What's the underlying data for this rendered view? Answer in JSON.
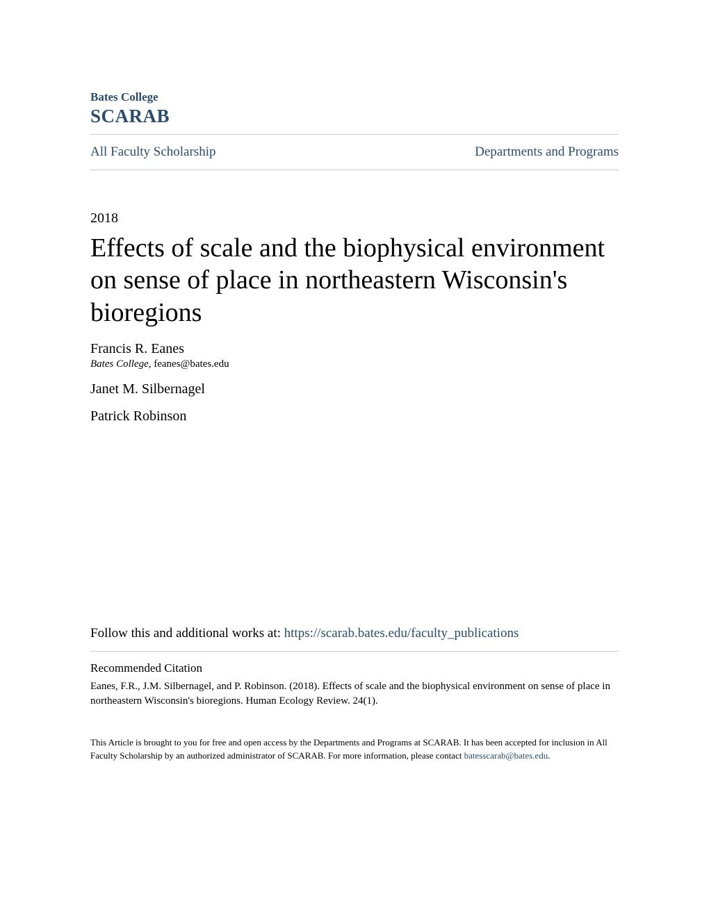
{
  "header": {
    "institution": "Bates College",
    "repository": "SCARAB"
  },
  "nav": {
    "left": "All Faculty Scholarship",
    "right": "Departments and Programs"
  },
  "year": "2018",
  "title": "Effects of scale and the biophysical environment on sense of place in northeastern Wisconsin's bioregions",
  "authors": [
    {
      "name": "Francis R. Eanes",
      "institution": "Bates College",
      "email": "feanes@bates.edu"
    },
    {
      "name": "Janet M. Silbernagel"
    },
    {
      "name": "Patrick Robinson"
    }
  ],
  "follow": {
    "prefix": "Follow this and additional works at: ",
    "url": "https://scarab.bates.edu/faculty_publications"
  },
  "citation": {
    "heading": "Recommended Citation",
    "text": "Eanes, F.R., J.M. Silbernagel, and P. Robinson. (2018). Effects of scale and the biophysical environment on sense of place in northeastern Wisconsin's bioregions. Human Ecology Review. 24(1)."
  },
  "footer": {
    "text_before": "This Article is brought to you for free and open access by the Departments and Programs at SCARAB. It has been accepted for inclusion in All Faculty Scholarship by an authorized administrator of SCARAB. For more information, please contact ",
    "email": "batesscarab@bates.edu",
    "text_after": "."
  },
  "colors": {
    "link_color": "#2a4d6e",
    "text_color": "#000000",
    "divider_color": "#cccccc",
    "background": "#ffffff"
  }
}
